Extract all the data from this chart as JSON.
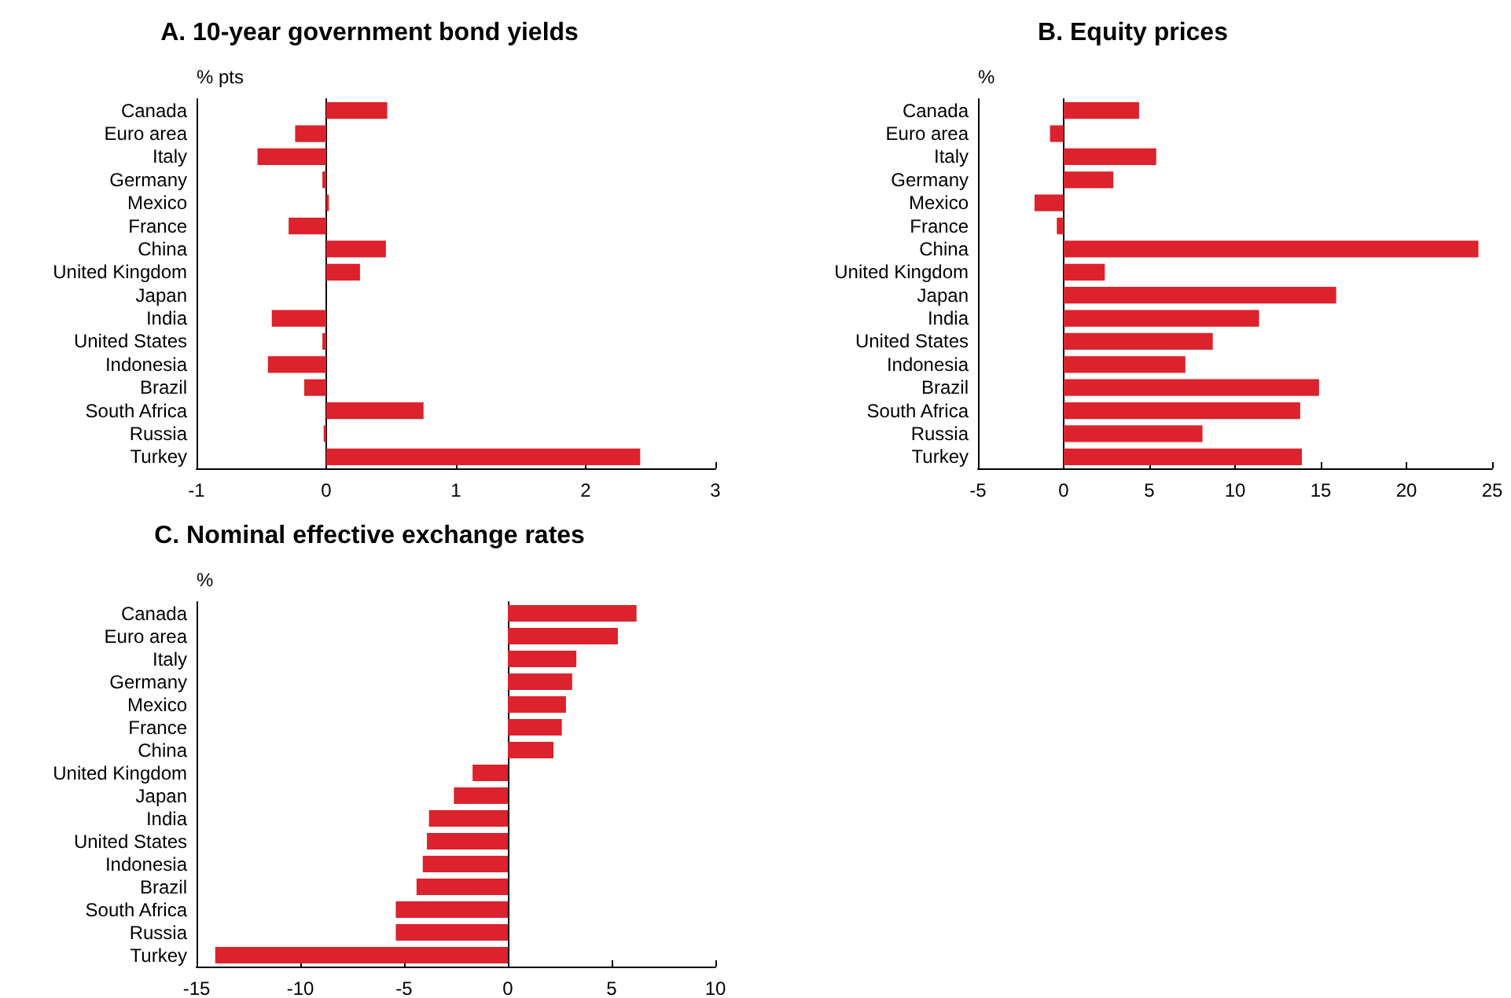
{
  "chart_data": [
    {
      "type": "bar",
      "orientation": "horizontal",
      "title": "A. 10-year government bond yields",
      "ylabel": "% pts",
      "categories": [
        "Canada",
        "Euro area",
        "Italy",
        "Germany",
        "Mexico",
        "France",
        "China",
        "United Kingdom",
        "Japan",
        "India",
        "United States",
        "Indonesia",
        "Brazil",
        "South Africa",
        "Russia",
        "Turkey"
      ],
      "values": [
        0.47,
        -0.24,
        -0.53,
        -0.03,
        0.02,
        -0.29,
        0.46,
        0.26,
        0,
        -0.42,
        -0.03,
        -0.45,
        -0.17,
        0.75,
        -0.02,
        2.42
      ],
      "color": "#dc222c",
      "xlim": [
        -1,
        3
      ],
      "xticks": [
        -1,
        0,
        1,
        2,
        3
      ]
    },
    {
      "type": "bar",
      "orientation": "horizontal",
      "title": "B. Equity prices",
      "ylabel": "%",
      "categories": [
        "Canada",
        "Euro area",
        "Italy",
        "Germany",
        "Mexico",
        "France",
        "China",
        "United Kingdom",
        "Japan",
        "India",
        "United States",
        "Indonesia",
        "Brazil",
        "South Africa",
        "Russia",
        "Turkey"
      ],
      "values": [
        4.4,
        -0.8,
        5.4,
        2.9,
        -1.7,
        -0.4,
        24.2,
        2.4,
        15.9,
        11.4,
        8.7,
        7.1,
        14.9,
        13.8,
        8.1,
        13.9
      ],
      "color": "#dc222c",
      "xlim": [
        -5,
        25
      ],
      "xticks": [
        -5,
        0,
        5,
        10,
        15,
        20,
        25
      ]
    },
    {
      "type": "bar",
      "orientation": "horizontal",
      "title": "C. Nominal effective exchange rates",
      "ylabel": "%",
      "categories": [
        "Canada",
        "Euro area",
        "Italy",
        "Germany",
        "Mexico",
        "France",
        "China",
        "United Kingdom",
        "Japan",
        "India",
        "United States",
        "Indonesia",
        "Brazil",
        "South Africa",
        "Russia",
        "Turkey"
      ],
      "values": [
        6.2,
        5.3,
        3.3,
        3.1,
        2.8,
        2.6,
        2.2,
        -1.7,
        -2.6,
        -3.8,
        -3.9,
        -4.1,
        -4.4,
        -5.4,
        -5.4,
        -14.1
      ],
      "color": "#dc222c",
      "xlim": [
        -15,
        10
      ],
      "xticks": [
        -15,
        -10,
        -5,
        0,
        5,
        10
      ]
    }
  ]
}
